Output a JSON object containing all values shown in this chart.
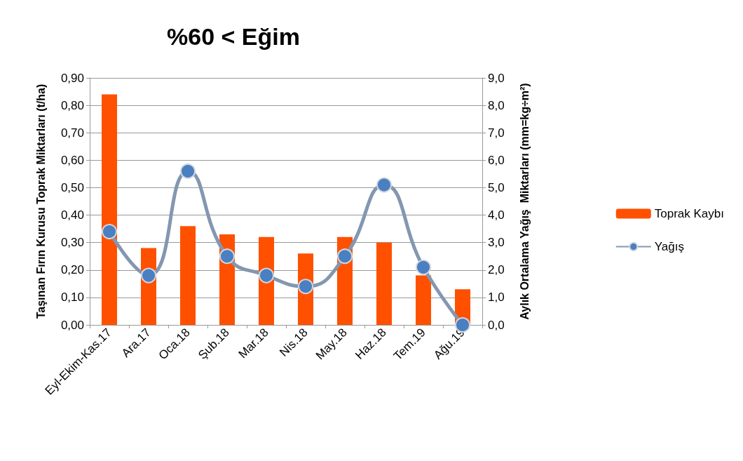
{
  "chart_data": {
    "type": "bar",
    "title": "%60 < Eğim",
    "ylabel": "Taşınan Fırın Kurusu Toprak Miktarları (t/ha)",
    "y2label": "Aylık Ortalama Yağış  Miktarları (mm=kg÷m²)",
    "categories": [
      "Eyl-Ekim-Kas.17",
      "Ara.17",
      "Oca.18",
      "Şub.18",
      "Mar.18",
      "Nis.18",
      "May.18",
      "Haz.18",
      "Tem.19",
      "Ağu.19"
    ],
    "series": [
      {
        "name": "Toprak Kaybı",
        "color": "#ff5000",
        "values": [
          0.84,
          0.28,
          0.36,
          0.33,
          0.32,
          0.26,
          0.32,
          0.3,
          0.18,
          0.13
        ]
      },
      {
        "name": "Yağış",
        "type": "line",
        "axis": "y2",
        "color": "#8497b0",
        "marker": "circle",
        "values": [
          3.4,
          1.8,
          5.6,
          2.5,
          1.8,
          1.4,
          2.5,
          5.1,
          2.1,
          0.0
        ]
      }
    ],
    "ylim": [
      0,
      0.9
    ],
    "yticks": [
      {
        "value": 0,
        "label": "0,00"
      },
      {
        "value": 0.1,
        "label": "0,10"
      },
      {
        "value": 0.2,
        "label": "0,20"
      },
      {
        "value": 0.3,
        "label": "0,30"
      },
      {
        "value": 0.4,
        "label": "0,40"
      },
      {
        "value": 0.5,
        "label": "0,50"
      },
      {
        "value": 0.6,
        "label": "0,60"
      },
      {
        "value": 0.7,
        "label": "0,70"
      },
      {
        "value": 0.8,
        "label": "0,80"
      },
      {
        "value": 0.9,
        "label": "0,90"
      }
    ],
    "y2lim": [
      0,
      9
    ],
    "y2ticks": [
      {
        "value": 0,
        "label": "0,0"
      },
      {
        "value": 1,
        "label": "1,0"
      },
      {
        "value": 2,
        "label": "2,0"
      },
      {
        "value": 3,
        "label": "3,0"
      },
      {
        "value": 4,
        "label": "4,0"
      },
      {
        "value": 5,
        "label": "5,0"
      },
      {
        "value": 6,
        "label": "6,0"
      },
      {
        "value": 7,
        "label": "7,0"
      },
      {
        "value": 8,
        "label": "8,0"
      },
      {
        "value": 9,
        "label": "9,0"
      }
    ],
    "grid": "y",
    "legend": "right"
  }
}
